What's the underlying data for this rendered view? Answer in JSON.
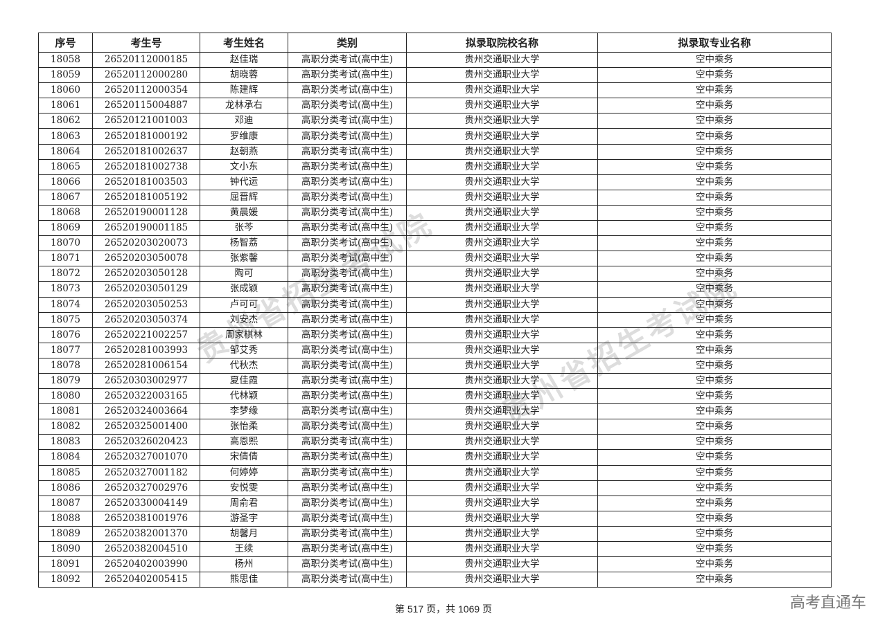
{
  "table": {
    "headers": [
      "序号",
      "考生号",
      "考生姓名",
      "类别",
      "拟录取院校名称",
      "拟录取专业名称"
    ],
    "rows": [
      [
        "18058",
        "26520112000185",
        "赵佳瑞",
        "高职分类考试(高中生)",
        "贵州交通职业大学",
        "空中乘务"
      ],
      [
        "18059",
        "26520112000280",
        "胡晓蓉",
        "高职分类考试(高中生)",
        "贵州交通职业大学",
        "空中乘务"
      ],
      [
        "18060",
        "26520112000354",
        "陈建辉",
        "高职分类考试(高中生)",
        "贵州交通职业大学",
        "空中乘务"
      ],
      [
        "18061",
        "26520115004887",
        "龙林承右",
        "高职分类考试(高中生)",
        "贵州交通职业大学",
        "空中乘务"
      ],
      [
        "18062",
        "26520121001003",
        "邓迪",
        "高职分类考试(高中生)",
        "贵州交通职业大学",
        "空中乘务"
      ],
      [
        "18063",
        "26520181000192",
        "罗维康",
        "高职分类考试(高中生)",
        "贵州交通职业大学",
        "空中乘务"
      ],
      [
        "18064",
        "26520181002637",
        "赵朝燕",
        "高职分类考试(高中生)",
        "贵州交通职业大学",
        "空中乘务"
      ],
      [
        "18065",
        "26520181002738",
        "文小东",
        "高职分类考试(高中生)",
        "贵州交通职业大学",
        "空中乘务"
      ],
      [
        "18066",
        "26520181003503",
        "钟代运",
        "高职分类考试(高中生)",
        "贵州交通职业大学",
        "空中乘务"
      ],
      [
        "18067",
        "26520181005192",
        "屈晋辉",
        "高职分类考试(高中生)",
        "贵州交通职业大学",
        "空中乘务"
      ],
      [
        "18068",
        "26520190001128",
        "黄晨媛",
        "高职分类考试(高中生)",
        "贵州交通职业大学",
        "空中乘务"
      ],
      [
        "18069",
        "26520190001185",
        "张芩",
        "高职分类考试(高中生)",
        "贵州交通职业大学",
        "空中乘务"
      ],
      [
        "18070",
        "26520203020073",
        "杨智荔",
        "高职分类考试(高中生)",
        "贵州交通职业大学",
        "空中乘务"
      ],
      [
        "18071",
        "26520203050078",
        "张紫馨",
        "高职分类考试(高中生)",
        "贵州交通职业大学",
        "空中乘务"
      ],
      [
        "18072",
        "26520203050128",
        "陶可",
        "高职分类考试(高中生)",
        "贵州交通职业大学",
        "空中乘务"
      ],
      [
        "18073",
        "26520203050129",
        "张成颖",
        "高职分类考试(高中生)",
        "贵州交通职业大学",
        "空中乘务"
      ],
      [
        "18074",
        "26520203050253",
        "卢可可",
        "高职分类考试(高中生)",
        "贵州交通职业大学",
        "空中乘务"
      ],
      [
        "18075",
        "26520203050374",
        "刘安杰",
        "高职分类考试(高中生)",
        "贵州交通职业大学",
        "空中乘务"
      ],
      [
        "18076",
        "26520221002257",
        "周家棋林",
        "高职分类考试(高中生)",
        "贵州交通职业大学",
        "空中乘务"
      ],
      [
        "18077",
        "26520281003993",
        "邹艾秀",
        "高职分类考试(高中生)",
        "贵州交通职业大学",
        "空中乘务"
      ],
      [
        "18078",
        "26520281006154",
        "代秋杰",
        "高职分类考试(高中生)",
        "贵州交通职业大学",
        "空中乘务"
      ],
      [
        "18079",
        "26520303002977",
        "夏佳霞",
        "高职分类考试(高中生)",
        "贵州交通职业大学",
        "空中乘务"
      ],
      [
        "18080",
        "26520322003165",
        "代林颖",
        "高职分类考试(高中生)",
        "贵州交通职业大学",
        "空中乘务"
      ],
      [
        "18081",
        "26520324003664",
        "李梦缘",
        "高职分类考试(高中生)",
        "贵州交通职业大学",
        "空中乘务"
      ],
      [
        "18082",
        "26520325001400",
        "张怡柔",
        "高职分类考试(高中生)",
        "贵州交通职业大学",
        "空中乘务"
      ],
      [
        "18083",
        "26520326020423",
        "高恩熙",
        "高职分类考试(高中生)",
        "贵州交通职业大学",
        "空中乘务"
      ],
      [
        "18084",
        "26520327001070",
        "宋倩倩",
        "高职分类考试(高中生)",
        "贵州交通职业大学",
        "空中乘务"
      ],
      [
        "18085",
        "26520327001182",
        "何婷婷",
        "高职分类考试(高中生)",
        "贵州交通职业大学",
        "空中乘务"
      ],
      [
        "18086",
        "26520327002976",
        "安悦雯",
        "高职分类考试(高中生)",
        "贵州交通职业大学",
        "空中乘务"
      ],
      [
        "18087",
        "26520330004149",
        "周俞君",
        "高职分类考试(高中生)",
        "贵州交通职业大学",
        "空中乘务"
      ],
      [
        "18088",
        "26520381001976",
        "游圣宇",
        "高职分类考试(高中生)",
        "贵州交通职业大学",
        "空中乘务"
      ],
      [
        "18089",
        "26520382001370",
        "胡馨月",
        "高职分类考试(高中生)",
        "贵州交通职业大学",
        "空中乘务"
      ],
      [
        "18090",
        "26520382004510",
        "王续",
        "高职分类考试(高中生)",
        "贵州交通职业大学",
        "空中乘务"
      ],
      [
        "18091",
        "26520402003990",
        "杨州",
        "高职分类考试(高中生)",
        "贵州交通职业大学",
        "空中乘务"
      ],
      [
        "18092",
        "26520402005415",
        "熊思佳",
        "高职分类考试(高中生)",
        "贵州交通职业大学",
        "空中乘务"
      ]
    ]
  },
  "watermark": "贵州省招生考试院",
  "footer": {
    "page_text": "第 517 页，共 1069 页"
  },
  "brand": "高考直通车"
}
